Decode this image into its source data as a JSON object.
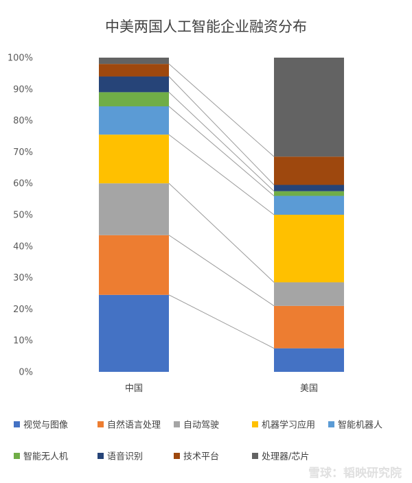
{
  "chart_data": {
    "type": "stacked-bar-100",
    "title": "中美两国人工智能企业融资分布",
    "categories": [
      "中国",
      "美国"
    ],
    "yticks": [
      "0%",
      "10%",
      "20%",
      "30%",
      "40%",
      "50%",
      "60%",
      "70%",
      "80%",
      "90%",
      "100%"
    ],
    "ylim": [
      0,
      100
    ],
    "grid": false,
    "legend_placement": "bottom",
    "series": [
      {
        "name": "视觉与图像",
        "color": "#4472C4",
        "values": [
          24.5,
          7.5
        ]
      },
      {
        "name": "自然语言处理",
        "color": "#ED7D31",
        "values": [
          19.0,
          13.5
        ]
      },
      {
        "name": "自动驾驶",
        "color": "#A5A5A5",
        "values": [
          16.5,
          7.5
        ]
      },
      {
        "name": "机器学习应用",
        "color": "#FFC000",
        "values": [
          15.5,
          21.5
        ]
      },
      {
        "name": "智能机器人",
        "color": "#5B9BD5",
        "values": [
          9.0,
          6.0
        ]
      },
      {
        "name": "智能无人机",
        "color": "#70AD47",
        "values": [
          4.5,
          1.5
        ]
      },
      {
        "name": "语音识别",
        "color": "#264478",
        "values": [
          5.0,
          2.0
        ]
      },
      {
        "name": "技术平台",
        "color": "#9E480E",
        "values": [
          4.0,
          9.0
        ]
      },
      {
        "name": "处理器/芯片",
        "color": "#636363",
        "values": [
          2.0,
          31.5
        ]
      }
    ]
  },
  "watermark": "雪球：韬映研究院"
}
